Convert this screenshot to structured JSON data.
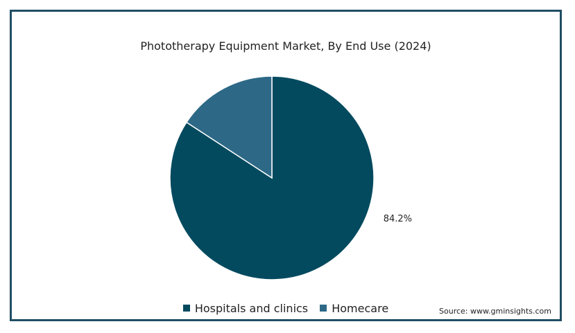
{
  "chart_data": {
    "type": "pie",
    "title": "Phototherapy Equipment Market, By End Use (2024)",
    "slices": [
      {
        "name": "Hospitals and clinics",
        "value": 84.2,
        "label": "84.2%",
        "color": "#034a5f"
      },
      {
        "name": "Homecare",
        "value": 15.8,
        "label": "",
        "color": "#2d6986"
      }
    ],
    "legend": "bottom-center",
    "source": "Source: www.gminsights.com"
  },
  "colors": {
    "border": "#1f4e63",
    "background": "#ffffff"
  }
}
